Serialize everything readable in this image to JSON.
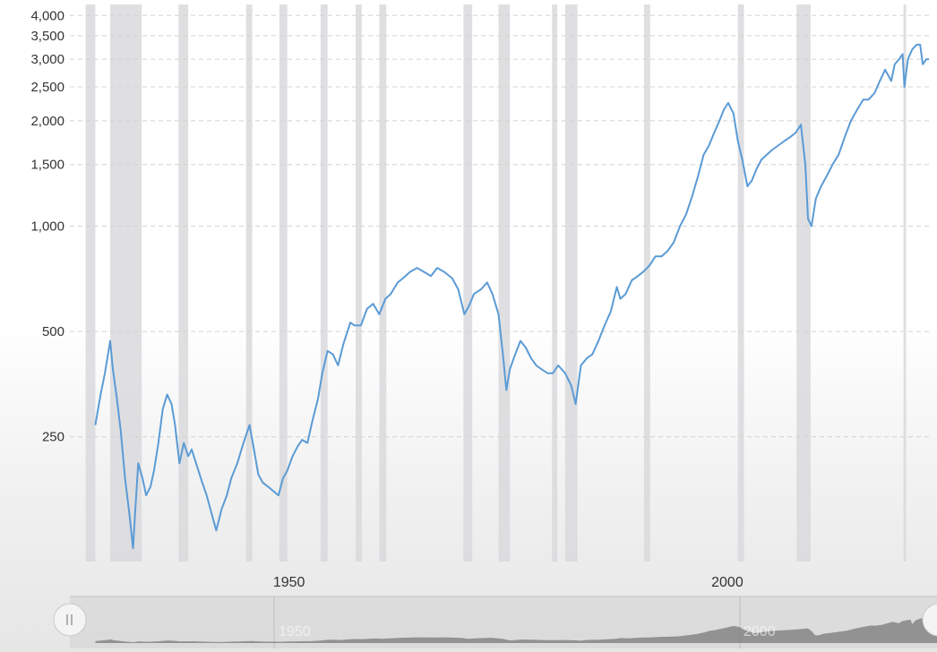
{
  "chart_data": {
    "type": "line",
    "title": "",
    "xlabel": "",
    "ylabel": "",
    "y_scale": "log",
    "xlim": [
      1925,
      2023
    ],
    "ylim": [
      110,
      4300
    ],
    "yticks": [
      250,
      500,
      1000,
      1500,
      2000,
      2500,
      3000,
      3500,
      4000
    ],
    "ytick_labels": [
      "250",
      "500",
      "1,000",
      "1,500",
      "2,000",
      "2,500",
      "3,000",
      "3,500",
      "4,000"
    ],
    "xticks": [
      1950,
      2000
    ],
    "xtick_labels": [
      "1950",
      "2000"
    ],
    "grid": "horizontal-dashed",
    "legend": "none",
    "line_color": "#5b9bd5",
    "recession_color": "#d9d9dd",
    "recessions": [
      {
        "start": 1926.8,
        "end": 1927.9
      },
      {
        "start": 1929.6,
        "end": 1933.2
      },
      {
        "start": 1937.4,
        "end": 1938.5
      },
      {
        "start": 1945.1,
        "end": 1945.8
      },
      {
        "start": 1948.9,
        "end": 1949.8
      },
      {
        "start": 1953.6,
        "end": 1954.4
      },
      {
        "start": 1957.6,
        "end": 1958.3
      },
      {
        "start": 1960.3,
        "end": 1961.1
      },
      {
        "start": 1969.9,
        "end": 1970.9
      },
      {
        "start": 1973.9,
        "end": 1975.2
      },
      {
        "start": 1980.0,
        "end": 1980.6
      },
      {
        "start": 1981.5,
        "end": 1982.9
      },
      {
        "start": 1990.5,
        "end": 1991.2
      },
      {
        "start": 2001.2,
        "end": 2001.9
      },
      {
        "start": 2007.9,
        "end": 2009.5
      },
      {
        "start": 2020.1,
        "end": 2020.4
      }
    ],
    "series": [
      {
        "x": [
          1927.9,
          1928.5,
          1929.0,
          1929.6,
          1929.9,
          1930.3,
          1930.8,
          1931.3,
          1931.8,
          1932.2,
          1932.5,
          1932.8,
          1933.3,
          1933.7,
          1934.2,
          1934.6,
          1935.1,
          1935.6,
          1936.1,
          1936.6,
          1937.0,
          1937.5,
          1938.0,
          1938.5,
          1938.9,
          1939.4,
          1940.1,
          1940.6,
          1941.2,
          1941.7,
          1942.3,
          1942.9,
          1943.4,
          1944.1,
          1944.8,
          1945.5,
          1946.0,
          1946.5,
          1947.0,
          1947.6,
          1948.2,
          1948.8,
          1949.3,
          1949.8,
          1950.4,
          1951.0,
          1951.5,
          1952.1,
          1952.7,
          1953.3,
          1953.8,
          1954.4,
          1955.0,
          1955.6,
          1956.2,
          1957.0,
          1957.5,
          1958.2,
          1958.9,
          1959.6,
          1960.3,
          1961.0,
          1961.6,
          1962.4,
          1963.0,
          1963.8,
          1964.6,
          1965.4,
          1966.2,
          1966.9,
          1967.7,
          1968.6,
          1969.3,
          1970.0,
          1970.5,
          1971.1,
          1971.9,
          1972.6,
          1973.2,
          1973.9,
          1974.4,
          1974.8,
          1975.2,
          1975.8,
          1976.4,
          1977.0,
          1977.6,
          1978.2,
          1978.8,
          1979.5,
          1980.1,
          1980.7,
          1981.5,
          1982.2,
          1982.7,
          1983.3,
          1984.0,
          1984.6,
          1985.3,
          1986.0,
          1986.7,
          1987.4,
          1987.8,
          1988.4,
          1989.1,
          1989.8,
          1990.4,
          1991.1,
          1991.8,
          1992.5,
          1993.2,
          1993.9,
          1994.6,
          1995.3,
          1996.0,
          1996.7,
          1997.3,
          1997.9,
          1998.5,
          1999.1,
          1999.6,
          2000.1,
          2000.7,
          2001.2,
          2001.7,
          2002.3,
          2002.8,
          2003.3,
          2003.9,
          2004.5,
          2005.1,
          2005.8,
          2006.5,
          2007.2,
          2007.8,
          2008.4,
          2008.9,
          2009.2,
          2009.6,
          2010.1,
          2010.7,
          2011.4,
          2012.0,
          2012.7,
          2013.4,
          2014.1,
          2014.8,
          2015.5,
          2016.1,
          2016.8,
          2017.4,
          2018.0,
          2018.7,
          2019.1,
          2019.6,
          2020.0,
          2020.2,
          2020.6,
          2021.1,
          2021.6,
          2022.0,
          2022.3,
          2022.7,
          2023.0
        ],
        "values": [
          270,
          330,
          380,
          470,
          390,
          330,
          260,
          190,
          150,
          120,
          160,
          210,
          190,
          170,
          180,
          200,
          240,
          300,
          330,
          310,
          270,
          210,
          240,
          220,
          230,
          210,
          185,
          170,
          150,
          135,
          155,
          170,
          190,
          210,
          240,
          270,
          230,
          195,
          185,
          180,
          175,
          170,
          190,
          200,
          220,
          235,
          245,
          240,
          280,
          320,
          380,
          440,
          430,
          400,
          460,
          530,
          520,
          520,
          580,
          600,
          560,
          620,
          640,
          690,
          710,
          740,
          760,
          740,
          720,
          760,
          740,
          710,
          660,
          560,
          590,
          640,
          660,
          690,
          640,
          560,
          430,
          340,
          390,
          430,
          470,
          450,
          420,
          400,
          390,
          380,
          380,
          400,
          380,
          350,
          310,
          400,
          420,
          430,
          470,
          520,
          570,
          670,
          620,
          640,
          700,
          720,
          740,
          770,
          820,
          820,
          850,
          900,
          1000,
          1080,
          1220,
          1400,
          1600,
          1700,
          1850,
          2000,
          2150,
          2250,
          2100,
          1750,
          1550,
          1300,
          1350,
          1450,
          1550,
          1600,
          1650,
          1700,
          1750,
          1800,
          1850,
          1950,
          1500,
          1050,
          1000,
          1200,
          1300,
          1400,
          1500,
          1600,
          1800,
          2000,
          2150,
          2300,
          2300,
          2400,
          2600,
          2800,
          2600,
          2900,
          3000,
          3100,
          2500,
          3000,
          3200,
          3300,
          3300,
          2900,
          3000,
          3000
        ]
      }
    ]
  },
  "navigator": {
    "tick_labels": [
      "1950",
      "2000"
    ],
    "handle_icon": "pause-grip-icon"
  }
}
